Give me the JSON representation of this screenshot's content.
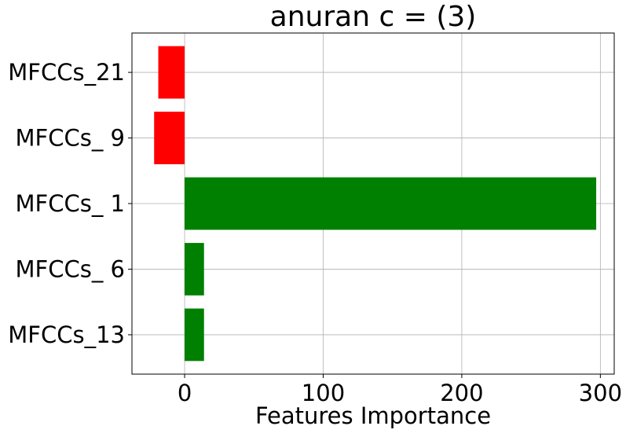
{
  "chart_data": {
    "type": "bar",
    "orientation": "horizontal",
    "title": "anuran c = (3)",
    "xlabel": "Features Importance",
    "ylabel": "",
    "categories": [
      "MFCCs_21",
      "MFCCs_ 9",
      "MFCCs_ 1",
      "MFCCs_ 6",
      "MFCCs_13"
    ],
    "values": [
      -19,
      -22,
      297,
      14,
      14
    ],
    "xlim": [
      -38,
      310
    ],
    "xticks": [
      0,
      100,
      200,
      300
    ],
    "xtick_labels": [
      "0",
      "100",
      "200",
      "300"
    ],
    "grid": true,
    "legend": false,
    "colors": {
      "positive": "#008000",
      "negative": "#ff0000"
    }
  }
}
